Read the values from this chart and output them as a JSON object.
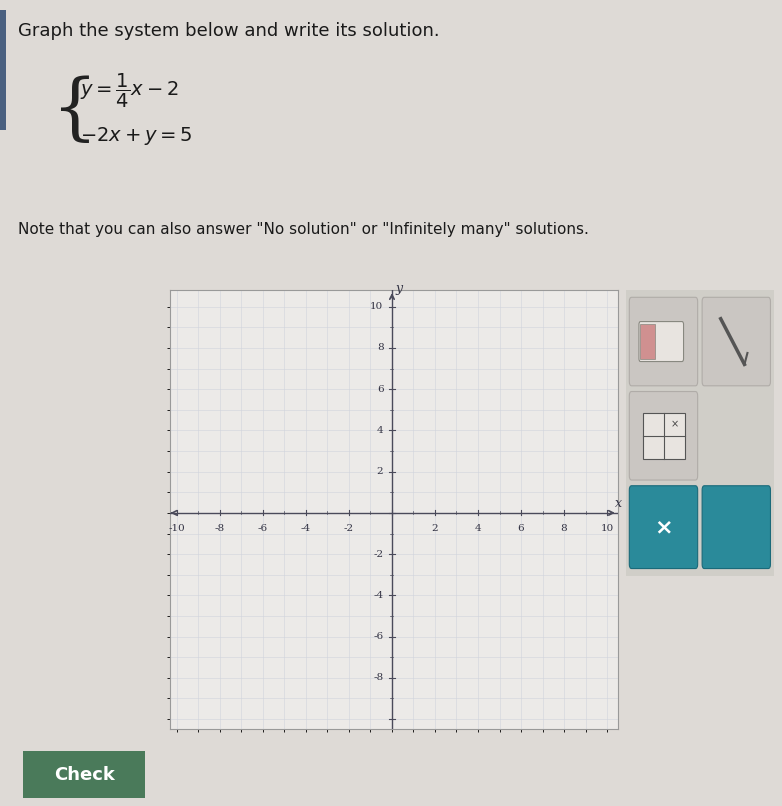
{
  "title": "Graph the system below and write its solution.",
  "note_text": "Note that you can also answer \"No solution\" or \"Infinitely many\" solutions.",
  "xlim": [
    -10,
    10
  ],
  "ylim": [
    -10,
    10
  ],
  "xticks": [
    -10,
    -8,
    -6,
    -4,
    -2,
    2,
    4,
    6,
    8,
    10
  ],
  "yticks": [
    -8,
    -6,
    -4,
    -2,
    2,
    4,
    6,
    8,
    10
  ],
  "grid_color": "#b8bcc8",
  "grid_minor_color": "#d0d4dc",
  "axis_color": "#4a4a5a",
  "background_color": "#dedad6",
  "plot_bg_color": "#eceae8",
  "ui_bg_color": "#d0cec8",
  "tick_label_fontsize": 7.5,
  "check_button_color": "#4a7a5a",
  "check_button_text": "Check",
  "teal_color": "#2a8a9a",
  "ui_icon_bg": "#c8c4c0"
}
